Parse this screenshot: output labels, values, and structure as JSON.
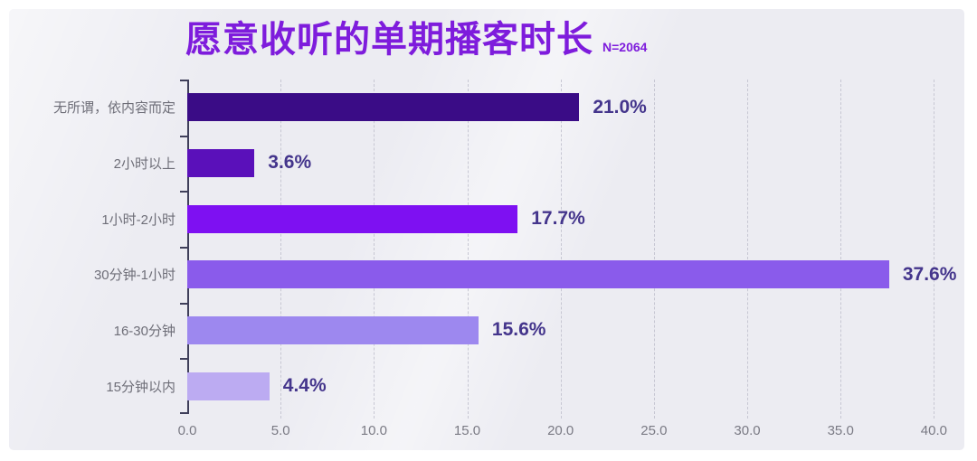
{
  "chart_data": {
    "type": "bar",
    "orientation": "horizontal",
    "title": "愿意收听的单期播客时长",
    "sample_label": "N=2064",
    "categories": [
      "无所谓，依内容而定",
      "2小时以上",
      "1小时-2小时",
      "30分钟-1小时",
      "16-30分钟",
      "15分钟以内"
    ],
    "values": [
      21.0,
      3.6,
      17.7,
      37.6,
      15.6,
      4.4
    ],
    "value_labels": [
      "21.0%",
      "3.6%",
      "17.7%",
      "37.6%",
      "15.6%",
      "4.4%"
    ],
    "bar_colors": [
      "#3A0C86",
      "#5A10BA",
      "#7E10F2",
      "#8A5BEB",
      "#9D88EF",
      "#BCABF2"
    ],
    "x_ticks": [
      "0.0",
      "5.0",
      "10.0",
      "15.0",
      "20.0",
      "25.0",
      "30.0",
      "35.0",
      "40.0"
    ],
    "x_tick_values": [
      0,
      5,
      10,
      15,
      20,
      25,
      30,
      35,
      40
    ],
    "xlim": [
      0,
      41
    ],
    "grid": "vertical-dashed",
    "legend": "none",
    "colors": {
      "title": "#7E1CDC",
      "value_label": "#44358C",
      "category_label": "#6E6E78",
      "axis_label": "#7A7A84",
      "axis_line": "#3F3F5A",
      "gridline": "#C7C7D3",
      "panel_background": "#ECECF2",
      "page_background": "#FFFFFF"
    }
  }
}
